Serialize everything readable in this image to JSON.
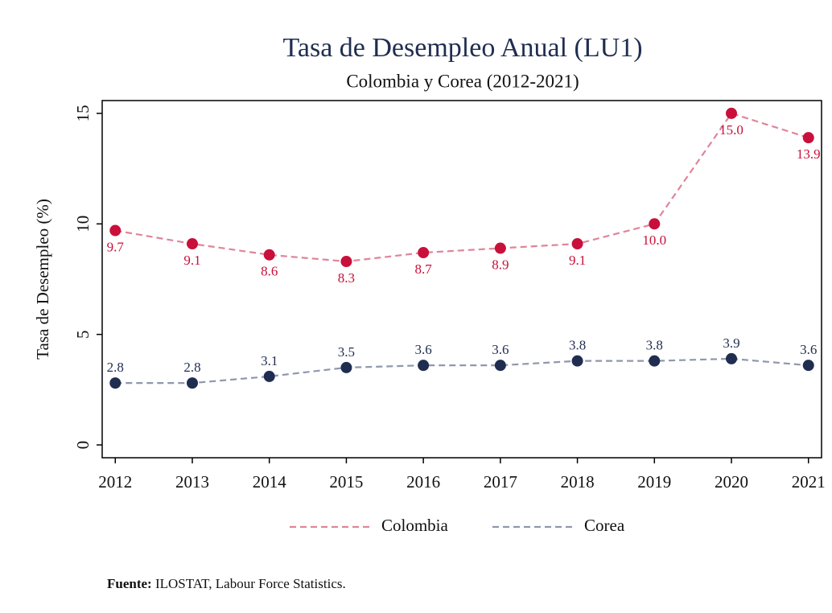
{
  "chart_data": {
    "type": "line",
    "title": "Tasa de Desempleo Anual (LU1)",
    "subtitle": "Colombia y Corea (2012-2021)",
    "y_label": "Tasa de Desempleo (%)",
    "x": [
      2012,
      2013,
      2014,
      2015,
      2016,
      2017,
      2018,
      2019,
      2020,
      2021
    ],
    "xlim": [
      2011.83,
      2021.17
    ],
    "xticks": [
      2012,
      2013,
      2014,
      2015,
      2016,
      2017,
      2018,
      2019,
      2020,
      2021
    ],
    "ylim": [
      -0.58,
      15.58
    ],
    "yticks": [
      0,
      5,
      10,
      15
    ],
    "grid": false,
    "legend": "bottom",
    "series": [
      {
        "name": "Colombia",
        "color": "#c8103a",
        "line_color": "#e0849a",
        "label_side": "below",
        "values": [
          9.7,
          9.1,
          8.6,
          8.3,
          8.7,
          8.9,
          9.1,
          10.0,
          15.0,
          13.9
        ],
        "value_labels": [
          "9.7",
          "9.1",
          "8.6",
          "8.3",
          "8.7",
          "8.9",
          "9.1",
          "10.0",
          "15.0",
          "13.9"
        ]
      },
      {
        "name": "Corea",
        "color": "#1f2d50",
        "line_color": "#9097ad",
        "label_side": "above",
        "values": [
          2.8,
          2.8,
          3.1,
          3.5,
          3.6,
          3.6,
          3.8,
          3.8,
          3.9,
          3.6
        ],
        "value_labels": [
          "2.8",
          "2.8",
          "3.1",
          "3.5",
          "3.6",
          "3.6",
          "3.8",
          "3.8",
          "3.9",
          "3.6"
        ]
      }
    ],
    "source_label": "Fuente:",
    "source": "ILOSTAT, Labour Force Statistics."
  }
}
